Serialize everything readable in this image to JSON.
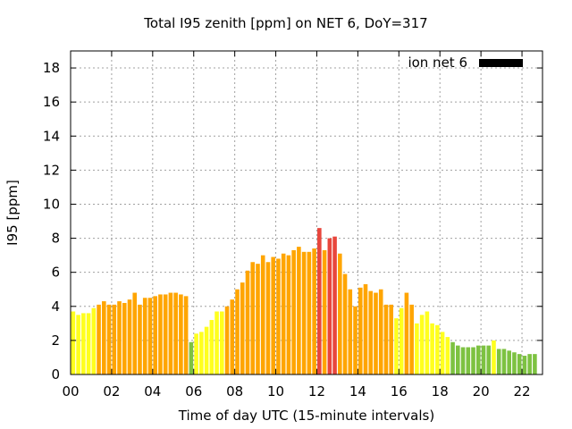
{
  "chart_data": {
    "type": "bar",
    "title": "Total I95 zenith [ppm] on NET 6, DoY=317",
    "xlabel": "Time of day UTC (15-minute intervals)",
    "ylabel": "I95 [ppm]",
    "ylim": [
      0,
      19
    ],
    "yticks": [
      0,
      2,
      4,
      6,
      8,
      10,
      12,
      14,
      16,
      18
    ],
    "ytick_labels": [
      "0",
      "2",
      "4",
      "6",
      "8",
      "10",
      "12",
      "14",
      "16",
      "18"
    ],
    "xlim": [
      0,
      23
    ],
    "xticks": [
      0,
      2,
      4,
      6,
      8,
      10,
      12,
      14,
      16,
      18,
      20,
      22
    ],
    "xtick_labels": [
      "00",
      "02",
      "04",
      "06",
      "08",
      "10",
      "12",
      "14",
      "16",
      "18",
      "20",
      "22"
    ],
    "grid": true,
    "legend": {
      "label": "ion net 6",
      "color": "#000000",
      "placement": "top-right"
    },
    "interval_hours": 0.25,
    "values": [
      3.7,
      3.5,
      3.6,
      3.6,
      3.9,
      4.1,
      4.3,
      4.1,
      4.1,
      4.3,
      4.2,
      4.4,
      4.8,
      4.1,
      4.5,
      4.5,
      4.6,
      4.7,
      4.7,
      4.8,
      4.8,
      4.7,
      4.6,
      1.9,
      2.4,
      2.5,
      2.8,
      3.2,
      3.7,
      3.7,
      4.0,
      4.4,
      5.0,
      5.4,
      6.1,
      6.6,
      6.5,
      7.0,
      6.6,
      6.9,
      6.8,
      7.1,
      7.0,
      7.3,
      7.5,
      7.2,
      7.2,
      7.4,
      8.6,
      7.3,
      8.0,
      8.1,
      7.1,
      5.9,
      5.0,
      4.0,
      5.1,
      5.3,
      4.9,
      4.8,
      5.0,
      4.1,
      4.1,
      3.3,
      3.9,
      4.8,
      4.1,
      3.0,
      3.5,
      3.7,
      3.0,
      2.9,
      2.5,
      2.2,
      1.9,
      1.7,
      1.6,
      1.6,
      1.6,
      1.7,
      1.7,
      1.7,
      2.0,
      1.5,
      1.5,
      1.4,
      1.3,
      1.2,
      1.1,
      1.2,
      1.2
    ],
    "color_levels": [
      {
        "max": 2.0,
        "color": "#7dc241"
      },
      {
        "max": 4.0,
        "color": "#ffff1e"
      },
      {
        "max": 8.0,
        "color": "#ffa500"
      },
      {
        "max": 99,
        "color": "#e8463c"
      }
    ]
  }
}
